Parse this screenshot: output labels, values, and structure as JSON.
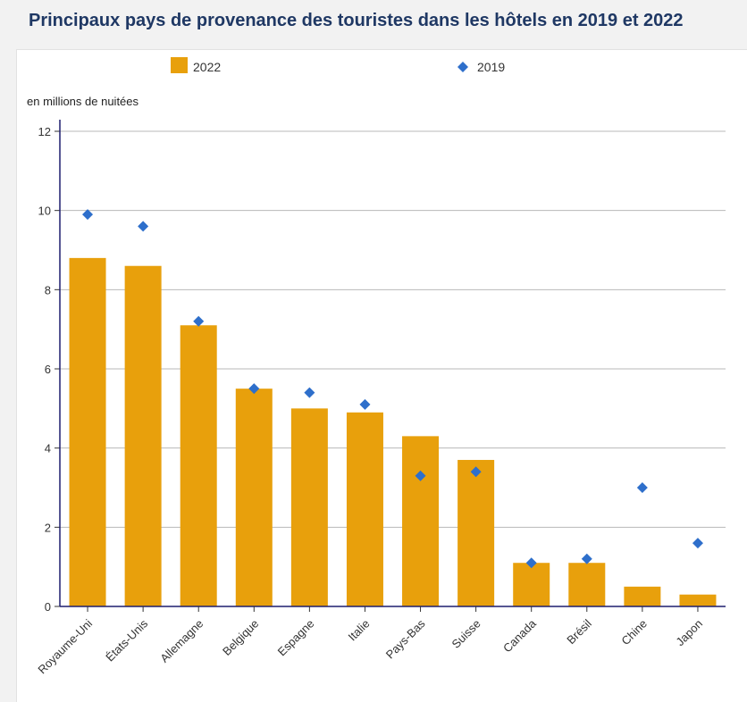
{
  "header": {
    "title": "Principaux pays de provenance des touristes dans les hôtels en 2019 et 2022"
  },
  "chart_data": {
    "type": "bar",
    "title": "Principaux pays de provenance des touristes dans les hôtels en 2019 et 2022",
    "ylabel": "en millions de nuitées",
    "xlabel": "",
    "ylim": [
      0,
      12
    ],
    "yticks": [
      0,
      2,
      4,
      6,
      8,
      10,
      12
    ],
    "grid": true,
    "legend_position": "top",
    "categories": [
      "Royaume-Uni",
      "États-Unis",
      "Allemagne",
      "Belgique",
      "Espagne",
      "Italie",
      "Pays-Bas",
      "Suisse",
      "Canada",
      "Brésil",
      "Chine",
      "Japon"
    ],
    "series": [
      {
        "name": "2022",
        "kind": "bar",
        "color": "#e8a00c",
        "values": [
          8.8,
          8.6,
          7.1,
          5.5,
          5.0,
          4.9,
          4.3,
          3.7,
          1.1,
          1.1,
          0.5,
          0.3
        ]
      },
      {
        "name": "2019",
        "kind": "marker-diamond",
        "color": "#2e6fcb",
        "values": [
          9.9,
          9.6,
          7.2,
          5.5,
          5.4,
          5.1,
          3.3,
          3.4,
          1.1,
          1.2,
          3.0,
          1.6
        ]
      }
    ]
  }
}
